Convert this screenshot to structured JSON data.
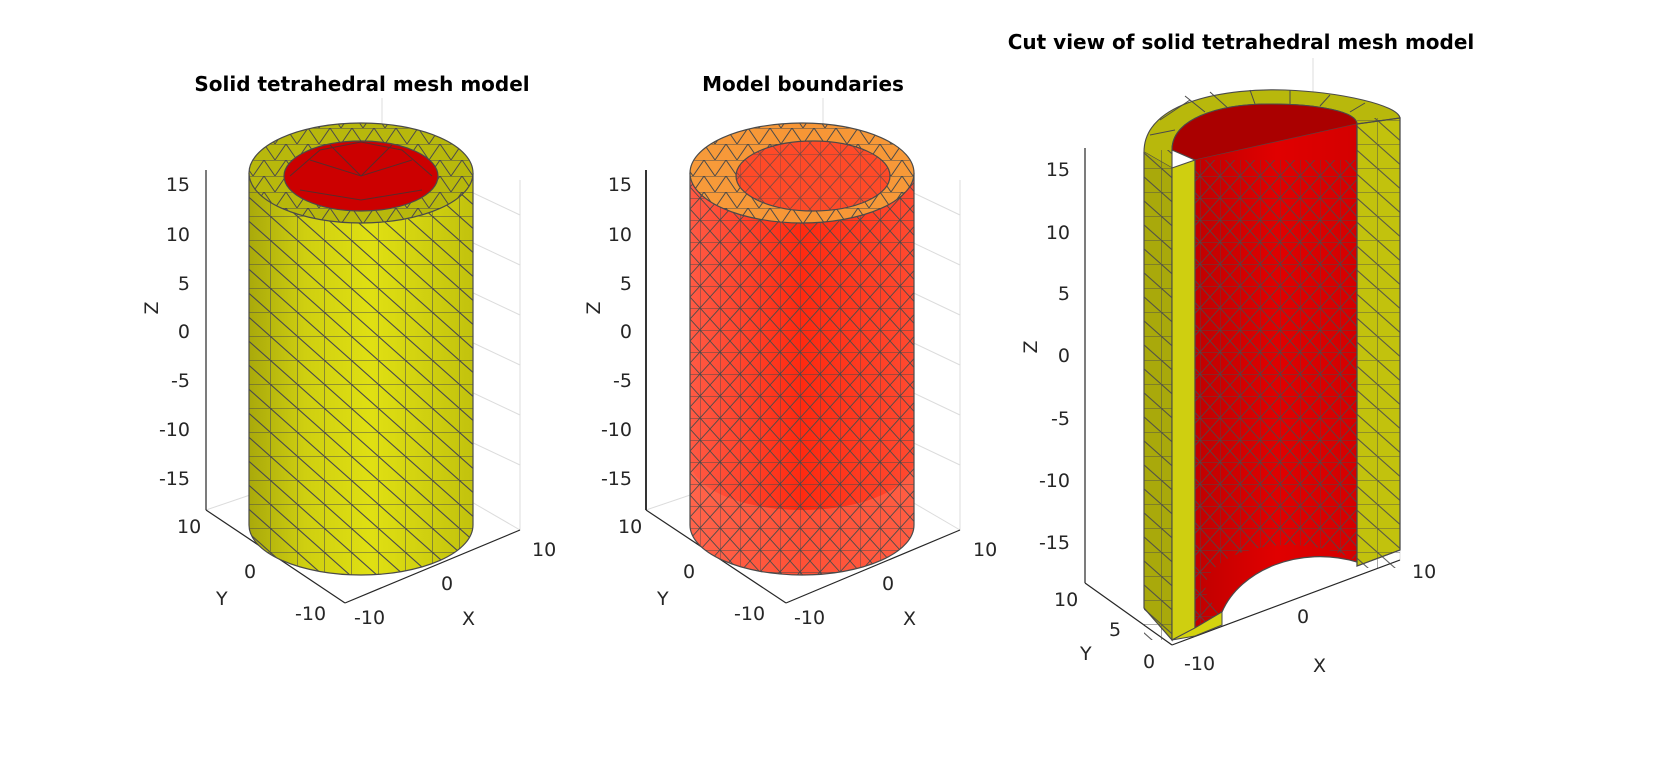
{
  "figure": {
    "panels": [
      {
        "id": "solid",
        "title": "Solid tetrahedral mesh model",
        "z_ticks": [
          "15",
          "10",
          "5",
          "0",
          "-5",
          "-10",
          "-15"
        ],
        "y_ticks": [
          "10",
          "0",
          "-10"
        ],
        "x_ticks": [
          "-10",
          "0",
          "10"
        ],
        "xlabel": "X",
        "ylabel": "Y",
        "zlabel": "Z"
      },
      {
        "id": "boundaries",
        "title": "Model boundaries",
        "z_ticks": [
          "15",
          "10",
          "5",
          "0",
          "-5",
          "-10",
          "-15"
        ],
        "y_ticks": [
          "10",
          "0",
          "-10"
        ],
        "x_ticks": [
          "-10",
          "0",
          "10"
        ],
        "xlabel": "X",
        "ylabel": "Y",
        "zlabel": "Z"
      },
      {
        "id": "cut",
        "title": "Cut view of solid tetrahedral mesh model",
        "z_ticks": [
          "15",
          "10",
          "5",
          "0",
          "-5",
          "-10",
          "-15"
        ],
        "y_ticks": [
          "10",
          "5",
          "0"
        ],
        "x_ticks": [
          "-10",
          "0",
          "10"
        ],
        "xlabel": "X",
        "ylabel": "Y",
        "zlabel": "Z"
      }
    ],
    "colors": {
      "solid_outer": "#d4d40f",
      "solid_outer_dark": "#a9a90b",
      "inner_red": "#d90000",
      "inner_red_dark": "#a80000",
      "boundary_side": "#ff3a1f",
      "boundary_top": "#f6a23a",
      "mesh_edge": "#4a4a4a"
    }
  }
}
